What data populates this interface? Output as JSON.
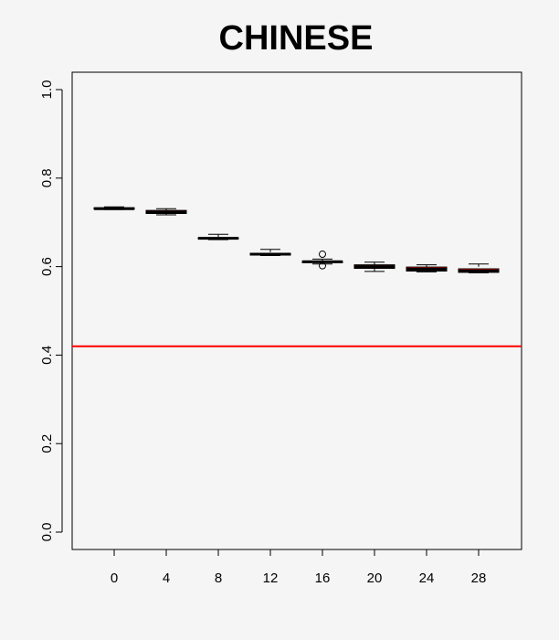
{
  "chart_data": {
    "type": "box",
    "title": "CHINESE",
    "xlabel": "",
    "ylabel": "",
    "ylim": [
      0.0,
      1.0
    ],
    "yticks": [
      "0.0",
      "0.2",
      "0.4",
      "0.6",
      "0.8",
      "1.0"
    ],
    "categories": [
      "0",
      "4",
      "8",
      "12",
      "16",
      "20",
      "24",
      "28"
    ],
    "boxes": [
      {
        "x": "0",
        "min": 0.729,
        "q1": 0.73,
        "median": 0.731,
        "q3": 0.733,
        "max": 0.735,
        "outliers": []
      },
      {
        "x": "4",
        "min": 0.717,
        "q1": 0.72,
        "median": 0.723,
        "q3": 0.727,
        "max": 0.731,
        "outliers": []
      },
      {
        "x": "8",
        "min": 0.661,
        "q1": 0.663,
        "median": 0.664,
        "q3": 0.665,
        "max": 0.673,
        "outliers": []
      },
      {
        "x": "12",
        "min": 0.625,
        "q1": 0.626,
        "median": 0.628,
        "q3": 0.63,
        "max": 0.639,
        "outliers": []
      },
      {
        "x": "16",
        "min": 0.606,
        "q1": 0.609,
        "median": 0.611,
        "q3": 0.612,
        "max": 0.617,
        "outliers": [
          0.628,
          0.602
        ]
      },
      {
        "x": "20",
        "min": 0.589,
        "q1": 0.596,
        "median": 0.6,
        "q3": 0.604,
        "max": 0.61,
        "outliers": []
      },
      {
        "x": "24",
        "min": 0.588,
        "q1": 0.59,
        "median": 0.594,
        "q3": 0.599,
        "max": 0.604,
        "outliers": []
      },
      {
        "x": "28",
        "min": 0.586,
        "q1": 0.587,
        "median": 0.59,
        "q3": 0.595,
        "max": 0.606,
        "outliers": []
      }
    ],
    "reference_line": {
      "y": 0.42,
      "color": "#ff0000"
    },
    "box_fill": "#ff0000",
    "grid": false,
    "legend": "none"
  }
}
